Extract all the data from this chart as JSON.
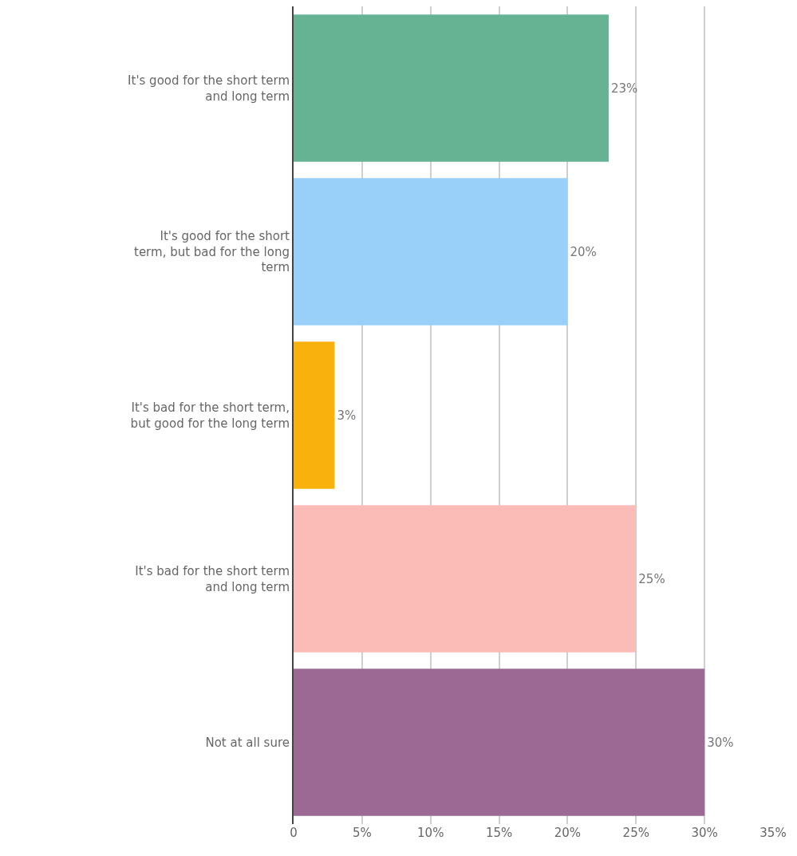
{
  "chart_data": {
    "type": "bar",
    "orientation": "horizontal",
    "categories": [
      "It's good for the short term and long term",
      "It's good for the short term, but bad for the long term",
      "It's bad for the short term, but good for the long term",
      "It's bad for the short term and long term",
      "Not at all sure"
    ],
    "values": [
      23,
      20,
      3,
      25,
      30
    ],
    "colors": [
      "#66b393",
      "#99d0fa",
      "#f9b20d",
      "#fbbcb8",
      "#9c6894"
    ],
    "value_labels": [
      "23%",
      "20%",
      "3%",
      "25%",
      "30%"
    ],
    "xlim": [
      0,
      35
    ],
    "xticks": [
      0,
      {
        "value": 5,
        "label": "5%"
      },
      {
        "value": 10,
        "label": "10%"
      },
      {
        "value": 15,
        "label": "15%"
      },
      {
        "value": 20,
        "label": "20%"
      },
      {
        "value": 25,
        "label": "25%"
      },
      {
        "value": 30,
        "label": "30%"
      },
      {
        "value": 35,
        "label": "35%"
      }
    ],
    "grid": "x"
  }
}
